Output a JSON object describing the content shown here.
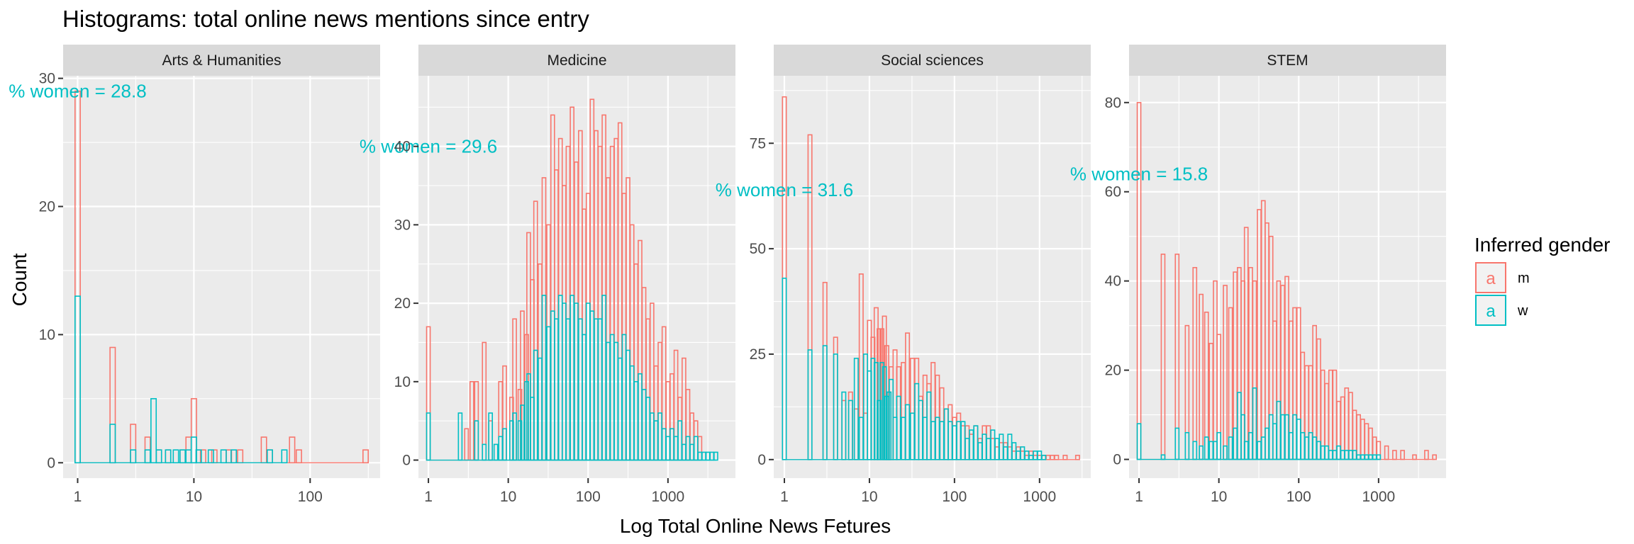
{
  "title": "Histograms: total online news mentions since entry",
  "colors": {
    "m": "#F8766D",
    "w": "#00BFC4",
    "panel_bg": "#EBEBEB",
    "strip_bg": "#D9D9D9"
  },
  "chart_data": {
    "type": "histogram",
    "x_scale": "log10",
    "xlabel": "Log Total Online News Fetures",
    "ylabel": "Count",
    "legend": {
      "title": "Inferred gender",
      "position": "right",
      "key_glyph": "a",
      "entries": [
        {
          "key": "m",
          "label": "m"
        },
        {
          "key": "w",
          "label": "w"
        }
      ]
    },
    "grid": true,
    "facets": [
      {
        "name": "Arts & Humanities",
        "pct_label": "% women = 28.8",
        "pct_pos": [
          1.0,
          29.0
        ],
        "xlim": [
          0.75,
          400
        ],
        "x_breaks": [
          1,
          10,
          100
        ],
        "x_break_labels": [
          "1",
          "10",
          "100"
        ],
        "ylim": [
          -1.2,
          30.2
        ],
        "y_breaks": [
          0,
          10,
          20,
          30
        ],
        "series": [
          {
            "name": "m",
            "x": [
              1,
              2,
              3,
              4,
              5,
              6,
              8,
              9,
              10,
              12,
              15,
              20,
              25,
              40,
              45,
              70,
              80,
              300
            ],
            "count": [
              29,
              9,
              3,
              2,
              1,
              1,
              1,
              2,
              5,
              1,
              1,
              1,
              1,
              2,
              1,
              2,
              1,
              1
            ]
          },
          {
            "name": "w",
            "x": [
              1,
              2,
              3,
              4,
              4.5,
              5,
              6,
              7,
              8,
              9,
              10,
              11,
              14,
              18,
              22,
              45,
              60
            ],
            "count": [
              13,
              3,
              1,
              1,
              5,
              1,
              1,
              1,
              1,
              1,
              2,
              1,
              1,
              1,
              1,
              1,
              1
            ]
          }
        ]
      },
      {
        "name": "Medicine",
        "pct_label": "% women = 29.6",
        "pct_pos": [
          1.0,
          40.0
        ],
        "xlim": [
          0.75,
          7000
        ],
        "x_breaks": [
          1,
          10,
          100,
          1000
        ],
        "x_break_labels": [
          "1",
          "10",
          "100",
          "1000"
        ],
        "ylim": [
          -2.3,
          49
        ],
        "y_breaks": [
          0,
          10,
          20,
          30,
          40
        ],
        "series": [
          {
            "name": "m",
            "x": [
              1,
              3,
              3.5,
              4,
              5,
              6,
              8,
              9,
              11,
              12,
              14,
              15,
              17,
              18,
              20,
              22,
              25,
              28,
              32,
              36,
              40,
              45,
              50,
              56,
              63,
              71,
              80,
              89,
              100,
              112,
              126,
              141,
              158,
              178,
              200,
              224,
              251,
              282,
              316,
              355,
              398,
              447,
              501,
              562,
              631,
              708,
              794,
              891,
              1000,
              1122,
              1259,
              1412,
              1585,
              1778,
              1995,
              2239,
              2512
            ],
            "count": [
              17,
              4,
              10,
              10,
              15,
              5,
              10,
              12,
              8,
              18,
              9,
              19,
              16,
              29,
              23,
              33,
              25,
              36,
              30,
              44,
              37,
              41,
              35,
              40,
              45,
              38,
              42,
              32,
              34,
              46,
              42,
              40,
              44,
              36,
              40,
              41,
              43,
              34,
              36,
              30,
              25,
              28,
              22,
              18,
              20,
              12,
              15,
              17,
              10,
              11,
              14,
              8,
              13,
              9,
              6,
              5,
              3
            ]
          },
          {
            "name": "w",
            "x": [
              1,
              2.5,
              4,
              5,
              6,
              7,
              8,
              9,
              11,
              12,
              14,
              15,
              17,
              18,
              20,
              22,
              25,
              28,
              32,
              36,
              40,
              45,
              50,
              56,
              63,
              71,
              80,
              89,
              100,
              112,
              126,
              141,
              158,
              178,
              200,
              224,
              251,
              282,
              316,
              355,
              398,
              447,
              501,
              562,
              631,
              708,
              794,
              891,
              1000,
              1122,
              1259,
              1412,
              1585,
              1778,
              1995,
              2239,
              2512,
              2818,
              3162,
              3548,
              3981
            ],
            "count": [
              6,
              6,
              5,
              2,
              6,
              2,
              3,
              4,
              5,
              6,
              5,
              7,
              10,
              11,
              8,
              14,
              13,
              21,
              17,
              19,
              18,
              21,
              20,
              18,
              21,
              20,
              18,
              16,
              20,
              19,
              18,
              18,
              21,
              15,
              16,
              15,
              13,
              16,
              14,
              12,
              10,
              11,
              9,
              8,
              6,
              5,
              6,
              4,
              3,
              4,
              3,
              5,
              2,
              3,
              2,
              3,
              1,
              1,
              1,
              1,
              1
            ]
          }
        ]
      },
      {
        "name": "Social sciences",
        "pct_label": "% women = 31.6",
        "pct_pos": [
          1.0,
          64.0
        ],
        "xlim": [
          0.75,
          4000
        ],
        "x_breaks": [
          1,
          10,
          100,
          1000
        ],
        "x_break_labels": [
          "1",
          "10",
          "100",
          "1000"
        ],
        "ylim": [
          -4.4,
          91
        ],
        "y_breaks": [
          0,
          25,
          50,
          75
        ],
        "series": [
          {
            "name": "m",
            "x": [
              1,
              2,
              3,
              4,
              5,
              6,
              7,
              8,
              9,
              10,
              11,
              12,
              13,
              14,
              15,
              16,
              17,
              18,
              20,
              22,
              25,
              28,
              32,
              36,
              40,
              45,
              50,
              56,
              63,
              71,
              80,
              89,
              100,
              112,
              126,
              141,
              158,
              178,
              200,
              224,
              251,
              282,
              316,
              355,
              398,
              447,
              501,
              562,
              631,
              708,
              794,
              891,
              1000,
              1122,
              1259,
              1412,
              1585,
              2000,
              2800
            ],
            "count": [
              86,
              77,
              42,
              29,
              14,
              16,
              12,
              44,
              11,
              33,
              29,
              36,
              31,
              31,
              34,
              27,
              16,
              22,
              26,
              22,
              23,
              30,
              24,
              24,
              15,
              20,
              18,
              23,
              20,
              17,
              12,
              13,
              10,
              11,
              8,
              8,
              6,
              8,
              5,
              8,
              8,
              5,
              3,
              4,
              4,
              3,
              2,
              3,
              2,
              1,
              2,
              1,
              1,
              1,
              1,
              1,
              1,
              1,
              1
            ]
          },
          {
            "name": "w",
            "x": [
              1,
              2,
              3,
              4,
              5,
              6,
              7,
              8,
              9,
              10,
              11,
              12,
              13,
              14,
              15,
              16,
              17,
              18,
              20,
              22,
              25,
              28,
              32,
              36,
              40,
              45,
              50,
              56,
              63,
              71,
              80,
              89,
              100,
              112,
              126,
              141,
              158,
              178,
              200,
              224,
              251,
              282,
              316,
              355,
              398,
              447,
              501,
              562,
              631,
              708,
              794,
              891,
              1000,
              1122
            ],
            "count": [
              43,
              26,
              27,
              25,
              16,
              14,
              24,
              10,
              25,
              21,
              24,
              23,
              14,
              23,
              22,
              15,
              16,
              19,
              10,
              15,
              10,
              13,
              11,
              18,
              14,
              10,
              16,
              9,
              10,
              9,
              12,
              9,
              8,
              9,
              9,
              5,
              7,
              8,
              4,
              6,
              5,
              7,
              5,
              6,
              3,
              6,
              4,
              2,
              3,
              2,
              1,
              2,
              2,
              1
            ]
          }
        ]
      },
      {
        "name": "STEM",
        "pct_label": "% women = 15.8",
        "pct_pos": [
          1.0,
          64.0
        ],
        "xlim": [
          0.75,
          7000
        ],
        "x_breaks": [
          1,
          10,
          100,
          1000
        ],
        "x_break_labels": [
          "1",
          "10",
          "100",
          "1000"
        ],
        "ylim": [
          -4.2,
          86
        ],
        "y_breaks": [
          0,
          20,
          40,
          60,
          80
        ],
        "series": [
          {
            "name": "m",
            "x": [
              1,
              2,
              3,
              4,
              5,
              6,
              7,
              8,
              9,
              10,
              12,
              14,
              16,
              18,
              20,
              22,
              25,
              28,
              32,
              36,
              40,
              45,
              50,
              56,
              63,
              71,
              80,
              89,
              100,
              112,
              126,
              141,
              158,
              178,
              200,
              224,
              251,
              282,
              316,
              355,
              398,
              447,
              501,
              562,
              631,
              708,
              794,
              891,
              1000,
              1259,
              1585,
              1995,
              2818,
              3981,
              5012
            ],
            "count": [
              80,
              46,
              46,
              30,
              43,
              37,
              33,
              26,
              40,
              28,
              39,
              34,
              42,
              43,
              40,
              52,
              43,
              40,
              56,
              58,
              53,
              50,
              31,
              40,
              39,
              41,
              31,
              34,
              34,
              24,
              21,
              21,
              30,
              27,
              20,
              17,
              20,
              20,
              13,
              14,
              16,
              15,
              11,
              10,
              9,
              8,
              7,
              5,
              4,
              3,
              2,
              2,
              1,
              2,
              1
            ]
          },
          {
            "name": "w",
            "x": [
              1,
              2,
              3,
              4,
              5,
              6,
              7,
              8,
              9,
              10,
              12,
              14,
              16,
              18,
              20,
              22,
              25,
              28,
              32,
              36,
              40,
              45,
              50,
              56,
              63,
              71,
              80,
              89,
              100,
              112,
              126,
              141,
              158,
              178,
              200,
              224,
              251,
              282,
              316,
              355,
              398,
              447,
              501,
              562,
              631,
              708,
              794,
              891,
              1000
            ],
            "count": [
              8,
              1,
              7,
              6,
              4,
              3,
              5,
              4,
              4,
              6,
              3,
              5,
              7,
              15,
              10,
              4,
              6,
              16,
              4,
              5,
              7,
              10,
              8,
              13,
              10,
              10,
              6,
              10,
              9,
              6,
              5,
              6,
              5,
              4,
              3,
              3,
              2,
              2,
              3,
              2,
              2,
              2,
              2,
              1,
              1,
              1,
              1,
              1,
              1
            ]
          }
        ]
      }
    ]
  }
}
